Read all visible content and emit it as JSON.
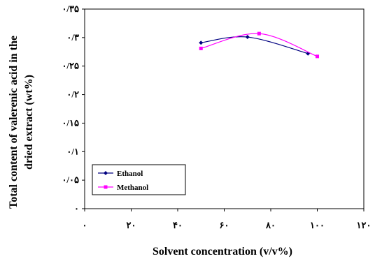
{
  "chart_data": {
    "type": "line",
    "xlabel": "Solvent concentration (v/v%)",
    "ylabel_line1": "Total content of valerenic acid in the",
    "ylabel_line2": "dried extract (wt%)",
    "x_ticks": [
      0,
      20,
      40,
      60,
      80,
      100,
      120
    ],
    "x_tick_labels": [
      "۰",
      "۲۰",
      "۴۰",
      "۶۰",
      "۸۰",
      "۱۰۰",
      "۱۲۰"
    ],
    "y_ticks": [
      0,
      0.05,
      0.1,
      0.15,
      0.2,
      0.25,
      0.3,
      0.35
    ],
    "y_tick_labels": [
      "۰",
      "۰/۰۵",
      "۰/۱",
      "۰/۱۵",
      "۰/۲",
      "۰/۲۵",
      "۰/۳",
      "۰/۳۵"
    ],
    "xlim": [
      0,
      120
    ],
    "ylim": [
      0,
      0.35
    ],
    "grid": false,
    "legend_position": "bottom-left",
    "series": [
      {
        "name": "Ethanol",
        "color": "#000080",
        "marker": "diamond",
        "x": [
          50,
          70,
          96
        ],
        "y": [
          0.291,
          0.301,
          0.272
        ]
      },
      {
        "name": "Methanol",
        "color": "#ff00ff",
        "marker": "square",
        "x": [
          50,
          75,
          100
        ],
        "y": [
          0.281,
          0.307,
          0.267
        ]
      }
    ],
    "legend_labels": [
      "Ethanol",
      "Methanol"
    ]
  }
}
